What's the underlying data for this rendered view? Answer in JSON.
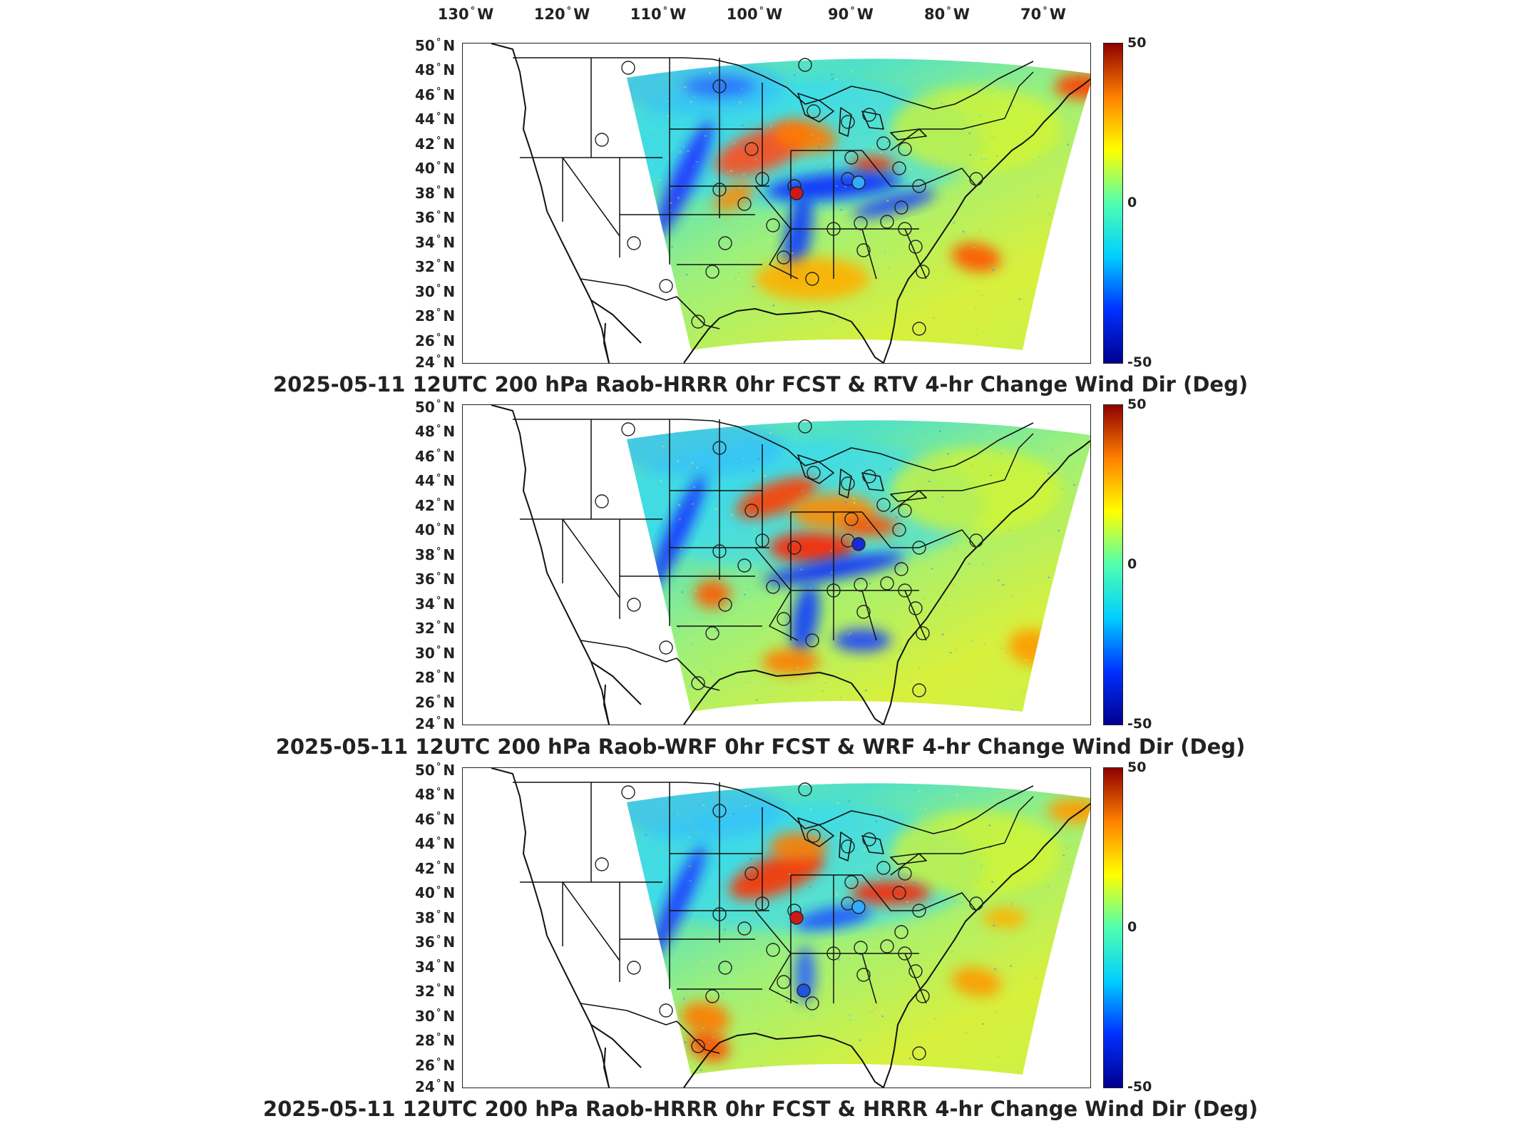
{
  "longitude_axis": {
    "labels": [
      {
        "value": "130",
        "dir": "W"
      },
      {
        "value": "120",
        "dir": "W"
      },
      {
        "value": "110",
        "dir": "W"
      },
      {
        "value": "100",
        "dir": "W"
      },
      {
        "value": "90",
        "dir": "W"
      },
      {
        "value": "80",
        "dir": "W"
      },
      {
        "value": "70",
        "dir": "W"
      }
    ]
  },
  "latitude_axis": {
    "labels": [
      {
        "value": "50",
        "dir": "N"
      },
      {
        "value": "48",
        "dir": "N"
      },
      {
        "value": "46",
        "dir": "N"
      },
      {
        "value": "44",
        "dir": "N"
      },
      {
        "value": "42",
        "dir": "N"
      },
      {
        "value": "40",
        "dir": "N"
      },
      {
        "value": "38",
        "dir": "N"
      },
      {
        "value": "36",
        "dir": "N"
      },
      {
        "value": "34",
        "dir": "N"
      },
      {
        "value": "32",
        "dir": "N"
      },
      {
        "value": "30",
        "dir": "N"
      },
      {
        "value": "28",
        "dir": "N"
      },
      {
        "value": "26",
        "dir": "N"
      },
      {
        "value": "24",
        "dir": "N"
      }
    ]
  },
  "colorbar": {
    "max_label": "50",
    "mid_label": "0",
    "min_label": "-50",
    "range": [
      -50,
      50
    ],
    "colors": [
      "#00008f",
      "#0030ff",
      "#00cfff",
      "#50ffaf",
      "#ffff00",
      "#ff8000",
      "#8f0000"
    ]
  },
  "panels": [
    {
      "title": "2025-05-11 12UTC 200 hPa Raob-HRRR 0hr FCST & RTV 4-hr Change Wind Dir (Deg)",
      "filled_stations": [
        {
          "name": "topeka",
          "value": 45,
          "color": "#cc1a1a"
        },
        {
          "name": "lincoln-il",
          "value": -20,
          "color": "#33aaff"
        }
      ]
    },
    {
      "title": "2025-05-11 12UTC 200 hPa Raob-WRF 0hr FCST & WRF 4-hr Change Wind Dir (Deg)",
      "filled_stations": [
        {
          "name": "lincoln-il",
          "value": -45,
          "color": "#1a2bd6"
        }
      ]
    },
    {
      "title": "2025-05-11 12UTC 200 hPa Raob-HRRR 0hr FCST & HRRR 4-hr Change Wind Dir (Deg)",
      "filled_stations": [
        {
          "name": "topeka",
          "value": 45,
          "color": "#cc1a1a"
        },
        {
          "name": "lincoln-il",
          "value": -20,
          "color": "#33aaff"
        },
        {
          "name": "little-rock",
          "value": -38,
          "color": "#2255dd"
        }
      ]
    }
  ]
}
